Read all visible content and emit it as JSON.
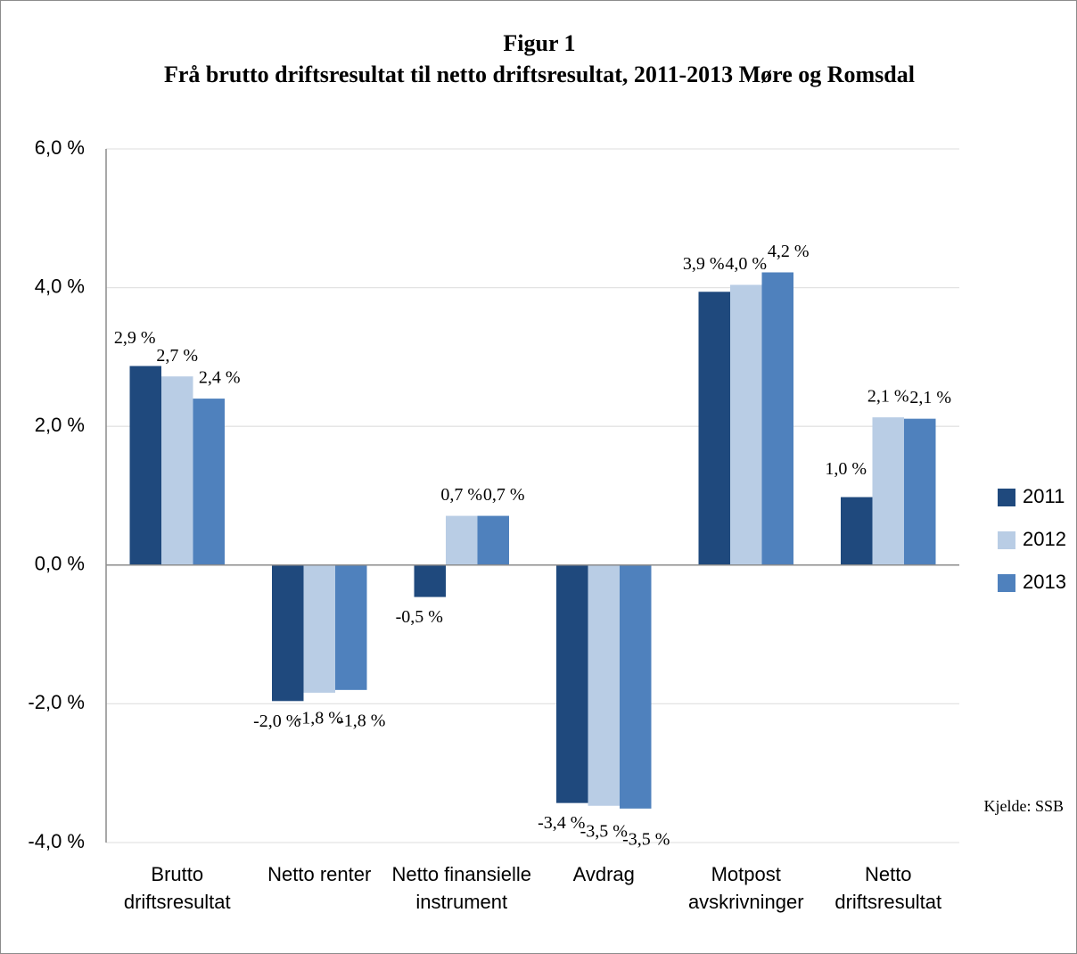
{
  "chart_data": {
    "type": "bar",
    "title": "Figur 1",
    "subtitle": "Frå brutto driftsresultat til netto driftsresultat, 2011-2013 Møre og Romsdal",
    "categories": [
      "Brutto driftsresultat",
      "Netto renter",
      "Netto finansielle instrument",
      "Avdrag",
      "Motpost avskrivninger",
      "Netto driftsresultat"
    ],
    "series": [
      {
        "name": "2011",
        "color": "#1f497d",
        "values": [
          2.87,
          -1.96,
          -0.46,
          -3.43,
          3.94,
          0.98
        ],
        "value_labels": [
          "2,9 %",
          "-2,0 %",
          "-0,5 %",
          "-3,4 %",
          "3,9 %",
          "1,0 %"
        ]
      },
      {
        "name": "2012",
        "color": "#b9cde5",
        "values": [
          2.72,
          -1.84,
          0.71,
          -3.47,
          4.04,
          2.13
        ],
        "value_labels": [
          "2,7 %",
          "-1,8 %",
          "0,7 %",
          "-3,5 %",
          "4,0 %",
          "2,1 %"
        ]
      },
      {
        "name": "2013",
        "color": "#4f81bd",
        "values": [
          2.4,
          -1.8,
          0.71,
          -3.51,
          4.22,
          2.11
        ],
        "value_labels": [
          "2,4 %",
          "-1,8 %",
          "0,7 %",
          "-3,5 %",
          "4,2 %",
          "2,1 %"
        ]
      }
    ],
    "ylim": [
      -4,
      6
    ],
    "yticks": [
      {
        "value": -4,
        "label": "-4,0 %"
      },
      {
        "value": -2,
        "label": "-2,0 %"
      },
      {
        "value": 0,
        "label": "0,0 %"
      },
      {
        "value": 2,
        "label": "2,0 %"
      },
      {
        "value": 4,
        "label": "4,0 %"
      },
      {
        "value": 6,
        "label": "6,0 %"
      }
    ],
    "grid": true,
    "legend": "right",
    "annotation": "Kjelde: SSB"
  }
}
